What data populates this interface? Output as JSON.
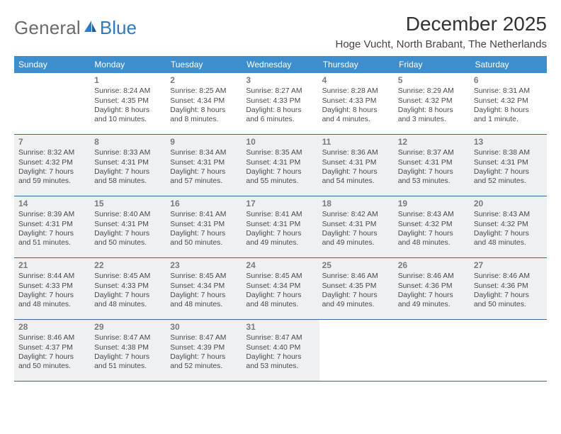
{
  "logo": {
    "part1": "General",
    "part2": "Blue"
  },
  "title": "December 2025",
  "location": "Hoge Vucht, North Brabant, The Netherlands",
  "header_bg": "#3d8ecf",
  "rule_color": "#3d6a92",
  "highlight_bg": "#eef0f2",
  "day_names": [
    "Sunday",
    "Monday",
    "Tuesday",
    "Wednesday",
    "Thursday",
    "Friday",
    "Saturday"
  ],
  "weeks": [
    [
      {
        "n": "",
        "sr": "",
        "ss": "",
        "dl1": "",
        "dl2": "",
        "hl": false
      },
      {
        "n": "1",
        "sr": "Sunrise: 8:24 AM",
        "ss": "Sunset: 4:35 PM",
        "dl1": "Daylight: 8 hours",
        "dl2": "and 10 minutes.",
        "hl": false
      },
      {
        "n": "2",
        "sr": "Sunrise: 8:25 AM",
        "ss": "Sunset: 4:34 PM",
        "dl1": "Daylight: 8 hours",
        "dl2": "and 8 minutes.",
        "hl": false
      },
      {
        "n": "3",
        "sr": "Sunrise: 8:27 AM",
        "ss": "Sunset: 4:33 PM",
        "dl1": "Daylight: 8 hours",
        "dl2": "and 6 minutes.",
        "hl": false
      },
      {
        "n": "4",
        "sr": "Sunrise: 8:28 AM",
        "ss": "Sunset: 4:33 PM",
        "dl1": "Daylight: 8 hours",
        "dl2": "and 4 minutes.",
        "hl": false
      },
      {
        "n": "5",
        "sr": "Sunrise: 8:29 AM",
        "ss": "Sunset: 4:32 PM",
        "dl1": "Daylight: 8 hours",
        "dl2": "and 3 minutes.",
        "hl": false
      },
      {
        "n": "6",
        "sr": "Sunrise: 8:31 AM",
        "ss": "Sunset: 4:32 PM",
        "dl1": "Daylight: 8 hours",
        "dl2": "and 1 minute.",
        "hl": false
      }
    ],
    [
      {
        "n": "7",
        "sr": "Sunrise: 8:32 AM",
        "ss": "Sunset: 4:32 PM",
        "dl1": "Daylight: 7 hours",
        "dl2": "and 59 minutes.",
        "hl": true
      },
      {
        "n": "8",
        "sr": "Sunrise: 8:33 AM",
        "ss": "Sunset: 4:31 PM",
        "dl1": "Daylight: 7 hours",
        "dl2": "and 58 minutes.",
        "hl": true
      },
      {
        "n": "9",
        "sr": "Sunrise: 8:34 AM",
        "ss": "Sunset: 4:31 PM",
        "dl1": "Daylight: 7 hours",
        "dl2": "and 57 minutes.",
        "hl": true
      },
      {
        "n": "10",
        "sr": "Sunrise: 8:35 AM",
        "ss": "Sunset: 4:31 PM",
        "dl1": "Daylight: 7 hours",
        "dl2": "and 55 minutes.",
        "hl": true
      },
      {
        "n": "11",
        "sr": "Sunrise: 8:36 AM",
        "ss": "Sunset: 4:31 PM",
        "dl1": "Daylight: 7 hours",
        "dl2": "and 54 minutes.",
        "hl": true
      },
      {
        "n": "12",
        "sr": "Sunrise: 8:37 AM",
        "ss": "Sunset: 4:31 PM",
        "dl1": "Daylight: 7 hours",
        "dl2": "and 53 minutes.",
        "hl": true
      },
      {
        "n": "13",
        "sr": "Sunrise: 8:38 AM",
        "ss": "Sunset: 4:31 PM",
        "dl1": "Daylight: 7 hours",
        "dl2": "and 52 minutes.",
        "hl": true
      }
    ],
    [
      {
        "n": "14",
        "sr": "Sunrise: 8:39 AM",
        "ss": "Sunset: 4:31 PM",
        "dl1": "Daylight: 7 hours",
        "dl2": "and 51 minutes.",
        "hl": true
      },
      {
        "n": "15",
        "sr": "Sunrise: 8:40 AM",
        "ss": "Sunset: 4:31 PM",
        "dl1": "Daylight: 7 hours",
        "dl2": "and 50 minutes.",
        "hl": true
      },
      {
        "n": "16",
        "sr": "Sunrise: 8:41 AM",
        "ss": "Sunset: 4:31 PM",
        "dl1": "Daylight: 7 hours",
        "dl2": "and 50 minutes.",
        "hl": true
      },
      {
        "n": "17",
        "sr": "Sunrise: 8:41 AM",
        "ss": "Sunset: 4:31 PM",
        "dl1": "Daylight: 7 hours",
        "dl2": "and 49 minutes.",
        "hl": true
      },
      {
        "n": "18",
        "sr": "Sunrise: 8:42 AM",
        "ss": "Sunset: 4:31 PM",
        "dl1": "Daylight: 7 hours",
        "dl2": "and 49 minutes.",
        "hl": true
      },
      {
        "n": "19",
        "sr": "Sunrise: 8:43 AM",
        "ss": "Sunset: 4:32 PM",
        "dl1": "Daylight: 7 hours",
        "dl2": "and 48 minutes.",
        "hl": true
      },
      {
        "n": "20",
        "sr": "Sunrise: 8:43 AM",
        "ss": "Sunset: 4:32 PM",
        "dl1": "Daylight: 7 hours",
        "dl2": "and 48 minutes.",
        "hl": true
      }
    ],
    [
      {
        "n": "21",
        "sr": "Sunrise: 8:44 AM",
        "ss": "Sunset: 4:33 PM",
        "dl1": "Daylight: 7 hours",
        "dl2": "and 48 minutes.",
        "hl": true
      },
      {
        "n": "22",
        "sr": "Sunrise: 8:45 AM",
        "ss": "Sunset: 4:33 PM",
        "dl1": "Daylight: 7 hours",
        "dl2": "and 48 minutes.",
        "hl": true
      },
      {
        "n": "23",
        "sr": "Sunrise: 8:45 AM",
        "ss": "Sunset: 4:34 PM",
        "dl1": "Daylight: 7 hours",
        "dl2": "and 48 minutes.",
        "hl": true
      },
      {
        "n": "24",
        "sr": "Sunrise: 8:45 AM",
        "ss": "Sunset: 4:34 PM",
        "dl1": "Daylight: 7 hours",
        "dl2": "and 48 minutes.",
        "hl": true
      },
      {
        "n": "25",
        "sr": "Sunrise: 8:46 AM",
        "ss": "Sunset: 4:35 PM",
        "dl1": "Daylight: 7 hours",
        "dl2": "and 49 minutes.",
        "hl": true
      },
      {
        "n": "26",
        "sr": "Sunrise: 8:46 AM",
        "ss": "Sunset: 4:36 PM",
        "dl1": "Daylight: 7 hours",
        "dl2": "and 49 minutes.",
        "hl": true
      },
      {
        "n": "27",
        "sr": "Sunrise: 8:46 AM",
        "ss": "Sunset: 4:36 PM",
        "dl1": "Daylight: 7 hours",
        "dl2": "and 50 minutes.",
        "hl": true
      }
    ],
    [
      {
        "n": "28",
        "sr": "Sunrise: 8:46 AM",
        "ss": "Sunset: 4:37 PM",
        "dl1": "Daylight: 7 hours",
        "dl2": "and 50 minutes.",
        "hl": true
      },
      {
        "n": "29",
        "sr": "Sunrise: 8:47 AM",
        "ss": "Sunset: 4:38 PM",
        "dl1": "Daylight: 7 hours",
        "dl2": "and 51 minutes.",
        "hl": true
      },
      {
        "n": "30",
        "sr": "Sunrise: 8:47 AM",
        "ss": "Sunset: 4:39 PM",
        "dl1": "Daylight: 7 hours",
        "dl2": "and 52 minutes.",
        "hl": true
      },
      {
        "n": "31",
        "sr": "Sunrise: 8:47 AM",
        "ss": "Sunset: 4:40 PM",
        "dl1": "Daylight: 7 hours",
        "dl2": "and 53 minutes.",
        "hl": true
      },
      {
        "n": "",
        "sr": "",
        "ss": "",
        "dl1": "",
        "dl2": "",
        "hl": false
      },
      {
        "n": "",
        "sr": "",
        "ss": "",
        "dl1": "",
        "dl2": "",
        "hl": false
      },
      {
        "n": "",
        "sr": "",
        "ss": "",
        "dl1": "",
        "dl2": "",
        "hl": false
      }
    ]
  ]
}
